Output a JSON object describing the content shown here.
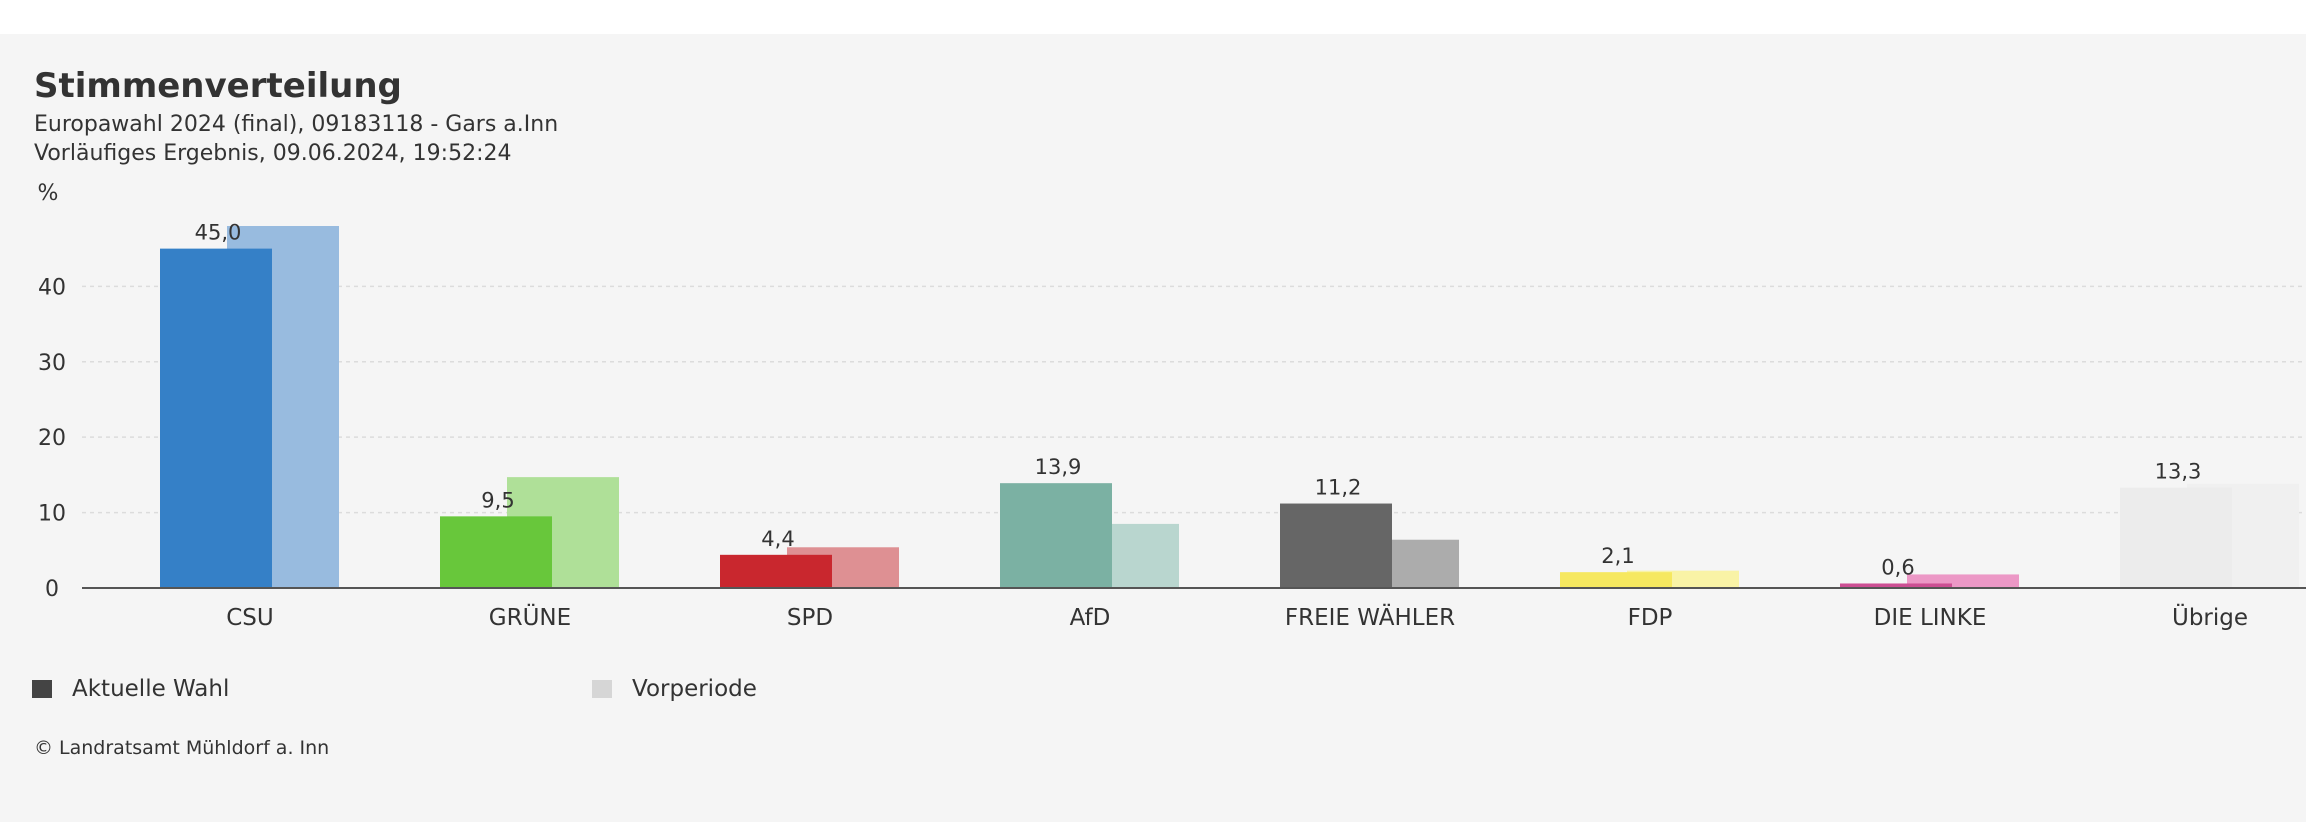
{
  "header": {
    "title": "Stimmenverteilung",
    "subtitle_line1": "Europawahl 2024 (final), 09183118 - Gars a.Inn",
    "subtitle_line2": "Vorläufiges Ergebnis, 09.06.2024, 19:52:24"
  },
  "chart_data": {
    "type": "bar",
    "title": "Stimmenverteilung",
    "ylabel": "%",
    "xlabel": "",
    "ylim": [
      0,
      48
    ],
    "yticks": [
      0,
      10,
      20,
      30,
      40
    ],
    "grid": true,
    "categories": [
      "CSU",
      "GRÜNE",
      "SPD",
      "AfD",
      "FREIE WÄHLER",
      "FDP",
      "DIE LINKE",
      "Übrige"
    ],
    "series": [
      {
        "name": "Aktuelle Wahl",
        "values": [
          45.0,
          9.5,
          4.4,
          13.9,
          11.2,
          2.1,
          0.6,
          13.3
        ],
        "labels": [
          "45,0",
          "9,5",
          "4,4",
          "13,9",
          "11,2",
          "2,1",
          "0,6",
          "13,3"
        ]
      },
      {
        "name": "Vorperiode",
        "values": [
          48.0,
          14.7,
          5.4,
          8.5,
          6.4,
          2.3,
          1.8,
          13.8
        ]
      }
    ],
    "colors_current": [
      "#3580c7",
      "#68c73b",
      "#c9272e",
      "#7bb1a3",
      "#666666",
      "#f6e860",
      "#cc4f93",
      "#ececec"
    ],
    "colors_previous": [
      "#98bbdf",
      "#afe098",
      "#de9093",
      "#b9d6cf",
      "#acacac",
      "#f9f3a6",
      "#ec98c6",
      "#f0f0f0"
    ]
  },
  "legend": {
    "current_label": "Aktuelle Wahl",
    "previous_label": "Vorperiode",
    "current_color": "#444444",
    "previous_color": "#d6d6d6"
  },
  "footer": {
    "copyright": "© Landratsamt Mühldorf a. Inn"
  }
}
